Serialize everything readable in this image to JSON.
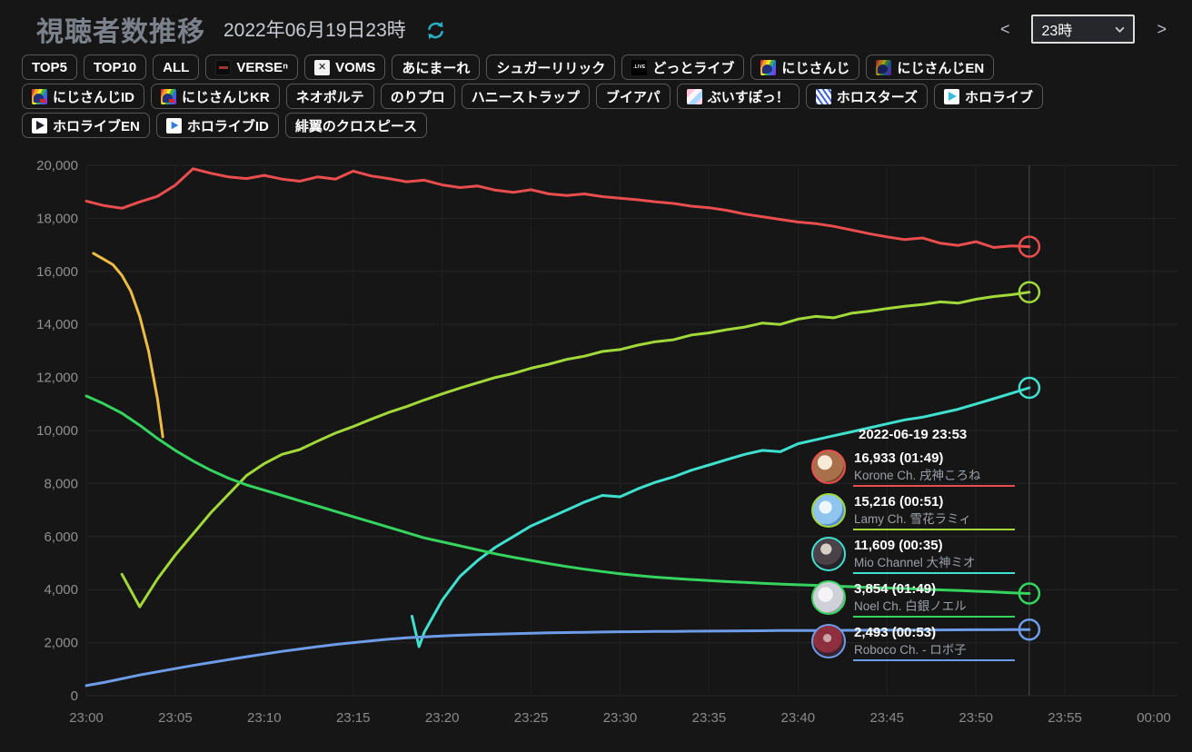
{
  "header": {
    "title": "視聴者数推移",
    "date": "2022年06月19日23時",
    "prev": "<",
    "next": ">",
    "hour_selected": "23時"
  },
  "filters": {
    "rows": [
      [
        {
          "id": "top5",
          "label": "TOP5"
        },
        {
          "id": "top10",
          "label": "TOP10"
        },
        {
          "id": "all",
          "label": "ALL"
        },
        {
          "id": "verse",
          "label": "VERSEⁿ",
          "icon": "verse-icon"
        },
        {
          "id": "voms",
          "label": "VOMS",
          "icon": "voms-icon"
        },
        {
          "id": "animare",
          "label": "あにまーれ"
        },
        {
          "id": "sugarlyric",
          "label": "シュガーリリック"
        },
        {
          "id": "dotlive",
          "label": "どっとライブ",
          "icon": "dotlive-icon"
        },
        {
          "id": "nijisanji",
          "label": "にじさんじ",
          "icon": "nijisanji-icon"
        },
        {
          "id": "nijisanji-en",
          "label": "にじさんじEN",
          "icon": "nijisanji-en-icon"
        }
      ],
      [
        {
          "id": "nijisanji-id",
          "label": "にじさんじID",
          "icon": "nijisanji-id-icon"
        },
        {
          "id": "nijisanji-kr",
          "label": "にじさんじKR",
          "icon": "nijisanji-kr-icon"
        },
        {
          "id": "neoporte",
          "label": "ネオポルテ"
        },
        {
          "id": "noripro",
          "label": "のりプロ"
        },
        {
          "id": "honeystrap",
          "label": "ハニーストラップ"
        },
        {
          "id": "vapart",
          "label": "ブイアパ"
        },
        {
          "id": "vspo",
          "label": "ぶいすぽっ！",
          "icon": "vspo-icon"
        },
        {
          "id": "holostars",
          "label": "ホロスターズ",
          "icon": "holostars-icon"
        },
        {
          "id": "hololive",
          "label": "ホロライブ",
          "icon": "hololive-icon"
        }
      ],
      [
        {
          "id": "hololive-en",
          "label": "ホロライブEN",
          "icon": "hololive-en-icon"
        },
        {
          "id": "hololive-id",
          "label": "ホロライブID",
          "icon": "hololive-id-icon"
        },
        {
          "id": "hiyoku",
          "label": "緋翼のクロスピース"
        }
      ]
    ]
  },
  "chart_data": {
    "type": "line",
    "title": "視聴者数推移",
    "xlabel": "",
    "ylabel": "",
    "ylim": [
      0,
      20000
    ],
    "x_unit": "minutes after 23:00",
    "grid": true,
    "legend_position": "tooltip-overlay",
    "xticks": [
      "23:00",
      "23:05",
      "23:10",
      "23:15",
      "23:20",
      "23:25",
      "23:30",
      "23:35",
      "23:40",
      "23:45",
      "23:50",
      "23:55",
      "00:00"
    ],
    "yticks": [
      "0",
      "2,000",
      "4,000",
      "6,000",
      "8,000",
      "10,000",
      "12,000",
      "14,000",
      "16,000",
      "18,000",
      "20,000"
    ],
    "hover_minute": 53,
    "hover_time_label": "2022-06-19 23:53",
    "series": [
      {
        "id": "korone",
        "name": "Korone Ch. 戌神ころね",
        "color": "#ea4d4d",
        "end_marker": true,
        "x_start": 0,
        "values": [
          18650,
          18480,
          18380,
          18620,
          18830,
          19250,
          19870,
          19700,
          19560,
          19500,
          19620,
          19480,
          19400,
          19560,
          19480,
          19780,
          19600,
          19500,
          19380,
          19440,
          19260,
          19160,
          19220,
          19060,
          18980,
          19080,
          18920,
          18860,
          18920,
          18820,
          18760,
          18700,
          18620,
          18560,
          18460,
          18400,
          18300,
          18160,
          18060,
          17960,
          17860,
          17800,
          17700,
          17560,
          17420,
          17300,
          17200,
          17260,
          17060,
          16980,
          17120,
          16900,
          16960,
          16933
        ]
      },
      {
        "id": "lamy",
        "name": "Lamy Ch. 雪花ラミィ",
        "color": "#a2d93a",
        "end_marker": true,
        "x_start": 2,
        "values": [
          4580,
          3350,
          4400,
          5300,
          6100,
          6900,
          7600,
          8300,
          8750,
          9100,
          9280,
          9600,
          9900,
          10150,
          10420,
          10680,
          10900,
          11150,
          11380,
          11600,
          11800,
          12000,
          12150,
          12350,
          12500,
          12680,
          12800,
          12980,
          13050,
          13220,
          13350,
          13420,
          13600,
          13680,
          13800,
          13900,
          14050,
          14000,
          14200,
          14300,
          14250,
          14420,
          14500,
          14600,
          14680,
          14750,
          14850,
          14800,
          14950,
          15050,
          15120,
          15216
        ]
      },
      {
        "id": "mio",
        "name": "Mio Channel 大神ミオ",
        "color": "#3fe0cf",
        "end_marker": true,
        "x": [
          18.3,
          18.7,
          19,
          20,
          21,
          22,
          23,
          24,
          25,
          26,
          27,
          28,
          29,
          30,
          31,
          32,
          33,
          34,
          35,
          36,
          37,
          38,
          39,
          40,
          41,
          42,
          43,
          44,
          45,
          46,
          47,
          48,
          49,
          50,
          51,
          52,
          53
        ],
        "values": [
          3000,
          1850,
          2400,
          3600,
          4500,
          5100,
          5600,
          6000,
          6400,
          6700,
          7000,
          7300,
          7550,
          7500,
          7800,
          8050,
          8250,
          8500,
          8700,
          8900,
          9100,
          9250,
          9200,
          9500,
          9650,
          9800,
          9950,
          10100,
          10250,
          10400,
          10500,
          10650,
          10800,
          11000,
          11200,
          11400,
          11609
        ]
      },
      {
        "id": "noel",
        "name": "Noel Ch. 白銀ノエル",
        "color": "#35d45f",
        "end_marker": true,
        "x_start": 0,
        "values": [
          11300,
          11000,
          10650,
          10200,
          9700,
          9250,
          8850,
          8500,
          8200,
          7950,
          7750,
          7550,
          7350,
          7150,
          6950,
          6750,
          6550,
          6350,
          6150,
          5950,
          5800,
          5650,
          5500,
          5350,
          5220,
          5100,
          4980,
          4870,
          4770,
          4680,
          4600,
          4530,
          4470,
          4420,
          4380,
          4340,
          4300,
          4270,
          4240,
          4210,
          4180,
          4160,
          4130,
          4110,
          4080,
          4060,
          4040,
          4010,
          3990,
          3970,
          3940,
          3910,
          3880,
          3854
        ]
      },
      {
        "id": "roboco",
        "name": "Roboco Ch. - ロボ子",
        "color": "#6d9ce8",
        "end_marker": true,
        "x_start": 0,
        "values": [
          380,
          500,
          640,
          780,
          900,
          1020,
          1140,
          1250,
          1360,
          1470,
          1570,
          1670,
          1760,
          1850,
          1930,
          2000,
          2070,
          2130,
          2180,
          2220,
          2250,
          2280,
          2300,
          2320,
          2340,
          2355,
          2370,
          2380,
          2390,
          2400,
          2410,
          2415,
          2420,
          2425,
          2430,
          2435,
          2440,
          2445,
          2450,
          2455,
          2458,
          2460,
          2463,
          2466,
          2469,
          2472,
          2475,
          2478,
          2480,
          2483,
          2486,
          2488,
          2491,
          2493
        ]
      },
      {
        "id": "ended-stream",
        "name": "unlabeled",
        "color": "#edbc43",
        "end_marker": false,
        "x": [
          0.4,
          1,
          1.5,
          2,
          2.5,
          3,
          3.5,
          4,
          4.3
        ],
        "values": [
          16680,
          16450,
          16250,
          15850,
          15250,
          14300,
          13000,
          11200,
          9760
        ]
      }
    ]
  },
  "tooltip": {
    "timestamp": "2022-06-19 23:53",
    "rows": [
      {
        "id": "korone",
        "avatar": "korone-avatar",
        "value": "16,933",
        "duration": "(01:49)",
        "channel": "Korone Ch. 戌神ころね",
        "color": "#ea4d4d"
      },
      {
        "id": "lamy",
        "avatar": "lamy-avatar",
        "value": "15,216",
        "duration": "(00:51)",
        "channel": "Lamy Ch. 雪花ラミィ",
        "color": "#a2d93a"
      },
      {
        "id": "mio",
        "avatar": "mio-avatar",
        "value": "11,609",
        "duration": "(00:35)",
        "channel": "Mio Channel 大神ミオ",
        "color": "#3fe0cf"
      },
      {
        "id": "noel",
        "avatar": "noel-avatar",
        "value": "3,854",
        "duration": "(01:49)",
        "channel": "Noel Ch. 白銀ノエル",
        "color": "#35d45f"
      },
      {
        "id": "roboco",
        "avatar": "roboco-avatar",
        "value": "2,493",
        "duration": "(00:53)",
        "channel": "Roboco Ch. - ロボ子",
        "color": "#6d9ce8"
      }
    ]
  }
}
